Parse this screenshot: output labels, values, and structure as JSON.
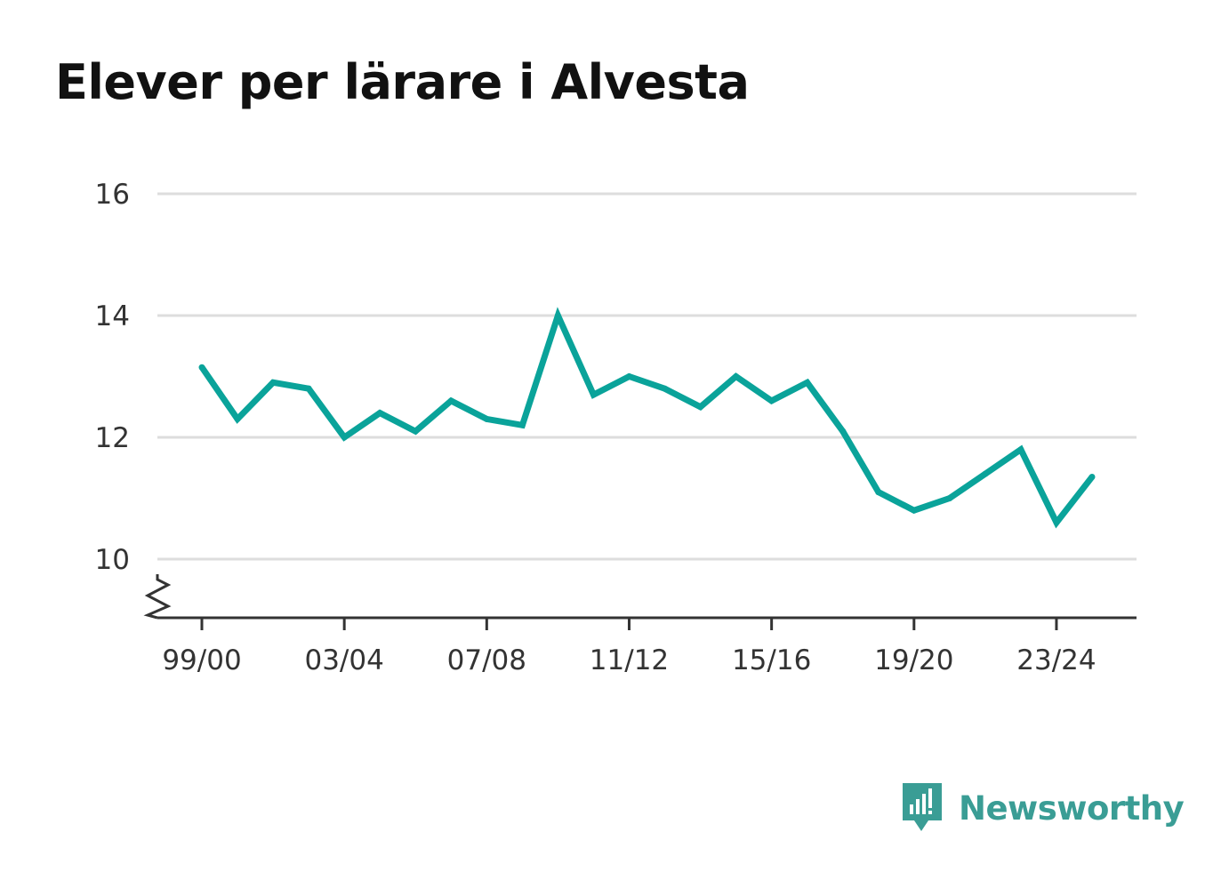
{
  "title": "Elever per lärare i Alvesta",
  "brand": {
    "name": "Newsworthy",
    "color": "#3a9d95",
    "icon": "newsworthy-logo-icon"
  },
  "chart_data": {
    "type": "line",
    "title": "Elever per lärare i Alvesta",
    "xlabel": "",
    "ylabel": "",
    "x": [
      "99/00",
      "00/01",
      "01/02",
      "02/03",
      "03/04",
      "04/05",
      "05/06",
      "06/07",
      "07/08",
      "08/09",
      "09/10",
      "10/11",
      "11/12",
      "12/13",
      "13/14",
      "14/15",
      "15/16",
      "16/17",
      "17/18",
      "18/19",
      "19/20",
      "20/21",
      "21/22",
      "22/23",
      "23/24",
      "24/25"
    ],
    "xticks": [
      "99/00",
      "03/04",
      "07/08",
      "11/12",
      "15/16",
      "19/20",
      "23/24"
    ],
    "yticks": [
      10,
      12,
      14,
      16
    ],
    "ylim": [
      9,
      16
    ],
    "axis_break": true,
    "grid": true,
    "series": [
      {
        "color": "#0aa39a",
        "values": [
          13.15,
          12.3,
          12.9,
          12.8,
          12.0,
          12.4,
          12.1,
          12.6,
          12.3,
          12.2,
          14.0,
          12.7,
          13.0,
          12.8,
          12.5,
          13.0,
          12.6,
          12.9,
          12.1,
          11.1,
          10.8,
          11.0,
          11.4,
          11.8,
          10.6,
          11.35
        ]
      }
    ]
  }
}
